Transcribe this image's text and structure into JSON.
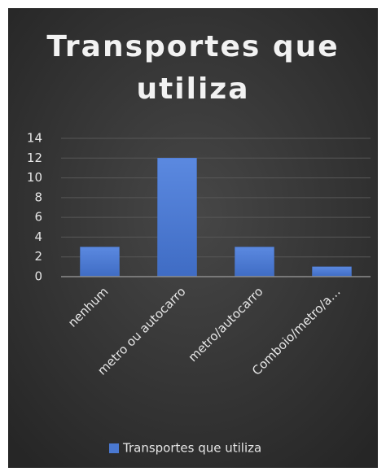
{
  "chart_data": {
    "type": "bar",
    "title": "Transportes que utiliza",
    "categories": [
      "nenhum",
      "metro ou autocarro",
      "metro/autocarro",
      "Comboio/metro/a…"
    ],
    "series": [
      {
        "name": "Transportes que utiliza",
        "color": "#4a78d0",
        "values": [
          3,
          12,
          3,
          1
        ]
      }
    ],
    "ylim": [
      0,
      14
    ],
    "yticks": [
      0,
      2,
      4,
      6,
      8,
      10,
      12,
      14
    ],
    "grid": true,
    "legend": "bottom"
  }
}
